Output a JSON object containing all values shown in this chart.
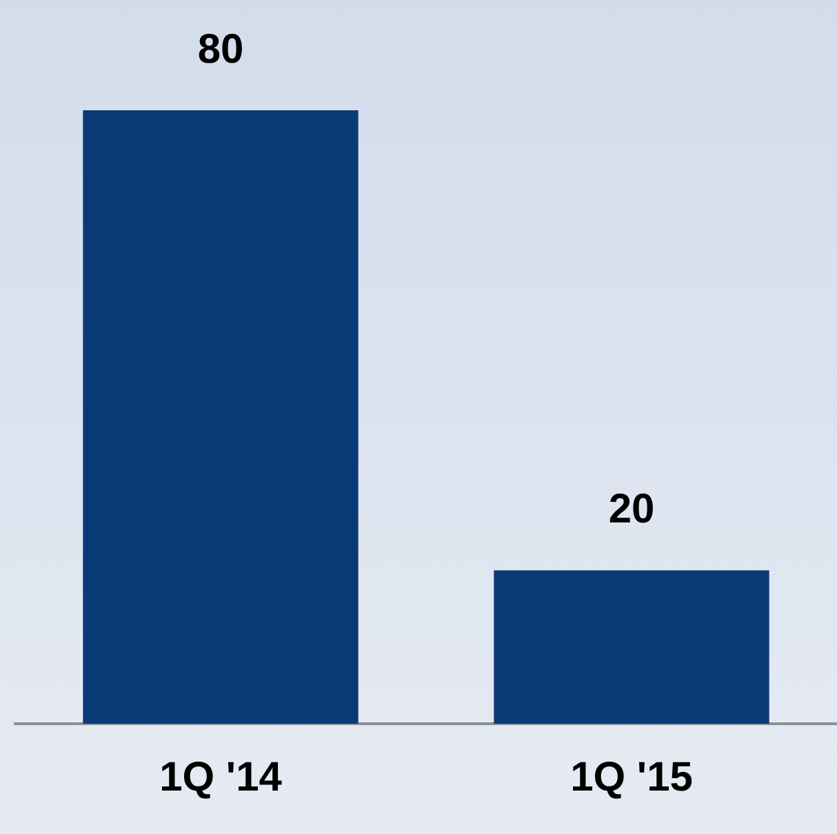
{
  "chart_data": {
    "type": "bar",
    "categories": [
      "1Q '14",
      "1Q '15"
    ],
    "values": [
      80,
      20
    ],
    "color": "#0a3a75",
    "data_labels": true,
    "grid": false,
    "legend": false
  }
}
